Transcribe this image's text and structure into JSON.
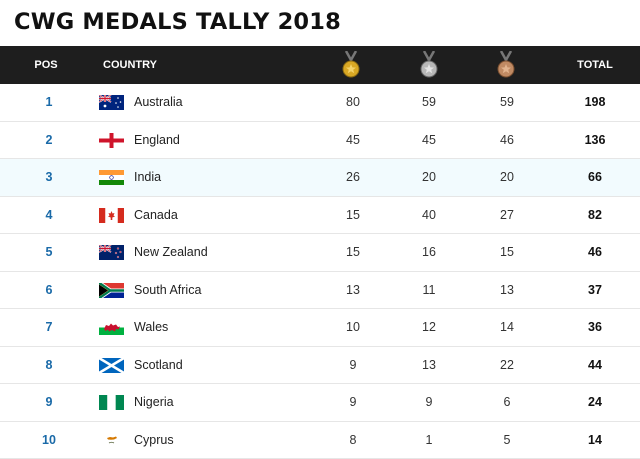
{
  "title": "CWG MEDALS TALLY 2018",
  "header": {
    "pos": "POS",
    "country": "COUNTRY",
    "total": "TOTAL",
    "medal_icons": [
      "gold-medal-icon",
      "silver-medal-icon",
      "bronze-medal-icon"
    ]
  },
  "colors": {
    "header_bg": "#1e1e1e",
    "position_text": "#1a6aa8",
    "highlight_row": "#f2fbfe",
    "gold": "#d9a824",
    "silver": "#b8b8b8",
    "bronze": "#c08a63"
  },
  "rows": [
    {
      "pos": "1",
      "country": "Australia",
      "flag": "australia-flag-icon",
      "gold": "80",
      "silver": "59",
      "bronze": "59",
      "total": "198"
    },
    {
      "pos": "2",
      "country": "England",
      "flag": "england-flag-icon",
      "gold": "45",
      "silver": "45",
      "bronze": "46",
      "total": "136"
    },
    {
      "pos": "3",
      "country": "India",
      "flag": "india-flag-icon",
      "gold": "26",
      "silver": "20",
      "bronze": "20",
      "total": "66"
    },
    {
      "pos": "4",
      "country": "Canada",
      "flag": "canada-flag-icon",
      "gold": "15",
      "silver": "40",
      "bronze": "27",
      "total": "82"
    },
    {
      "pos": "5",
      "country": "New Zealand",
      "flag": "new-zealand-flag-icon",
      "gold": "15",
      "silver": "16",
      "bronze": "15",
      "total": "46"
    },
    {
      "pos": "6",
      "country": "South Africa",
      "flag": "south-africa-flag-icon",
      "gold": "13",
      "silver": "11",
      "bronze": "13",
      "total": "37"
    },
    {
      "pos": "7",
      "country": "Wales",
      "flag": "wales-flag-icon",
      "gold": "10",
      "silver": "12",
      "bronze": "14",
      "total": "36"
    },
    {
      "pos": "8",
      "country": "Scotland",
      "flag": "scotland-flag-icon",
      "gold": "9",
      "silver": "13",
      "bronze": "22",
      "total": "44"
    },
    {
      "pos": "9",
      "country": "Nigeria",
      "flag": "nigeria-flag-icon",
      "gold": "9",
      "silver": "9",
      "bronze": "6",
      "total": "24"
    },
    {
      "pos": "10",
      "country": "Cyprus",
      "flag": "cyprus-flag-icon",
      "gold": "8",
      "silver": "1",
      "bronze": "5",
      "total": "14"
    }
  ]
}
